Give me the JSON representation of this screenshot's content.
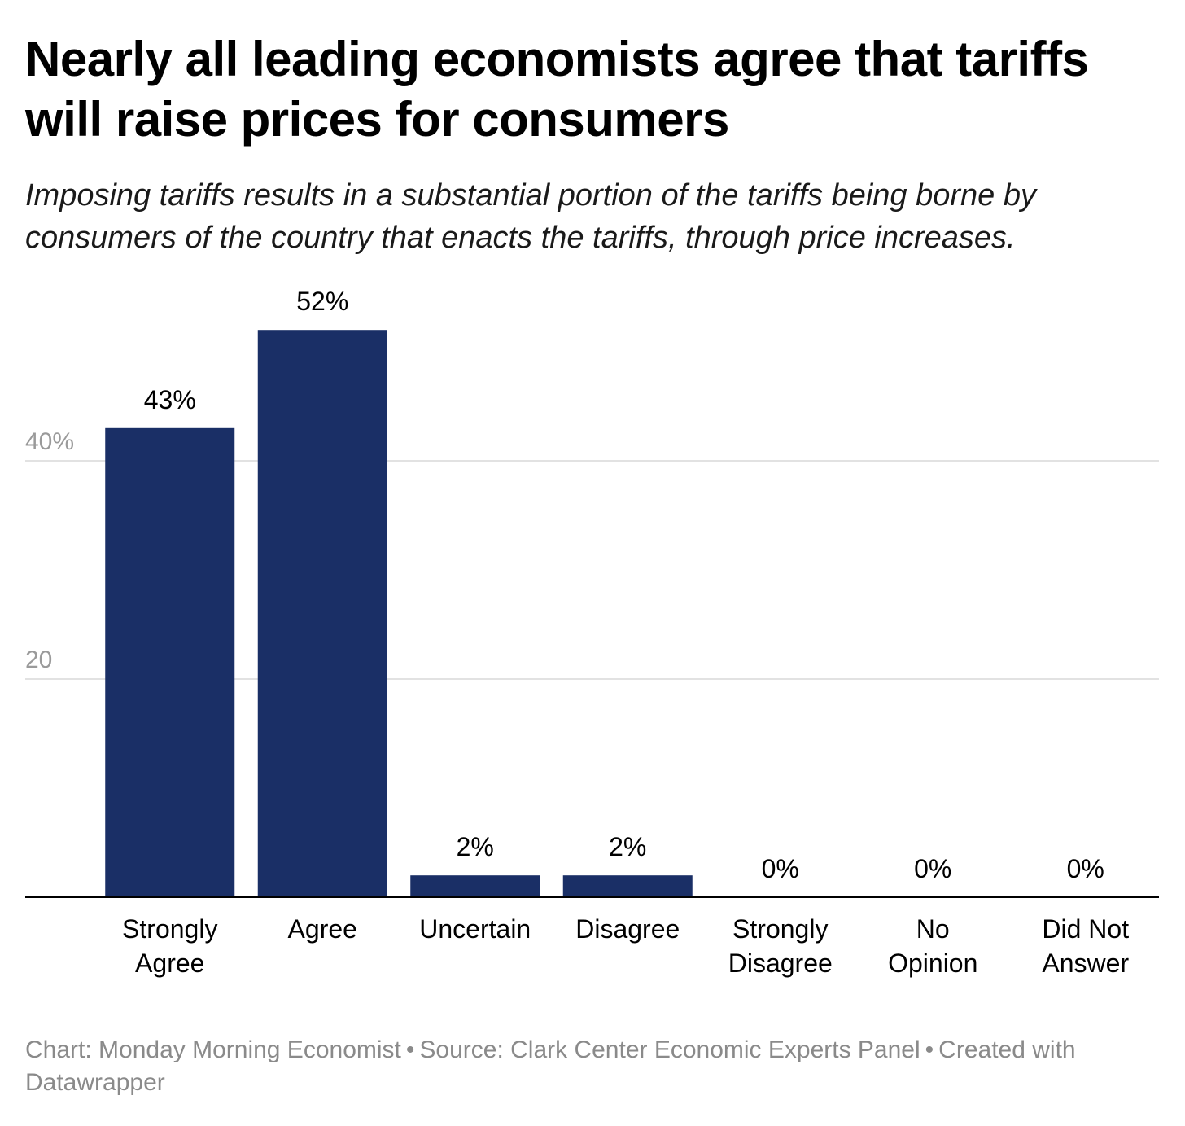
{
  "header": {
    "title": "Nearly all leading economists agree that tariffs will raise prices for consumers",
    "subtitle": "Imposing tariffs results in a substantial portion of the tariffs being borne by consumers of the country that enacts the tariffs, through price increases."
  },
  "footer": {
    "chart_credit": "Chart: Monday Morning Economist",
    "source": "Source: Clark Center Economic Experts Panel",
    "created_with": "Created with Datawrapper"
  },
  "colors": {
    "bar": "#1a2f66",
    "grid": "#e2e2e2",
    "axis": "#000000",
    "tick_label": "#9a9a9a"
  },
  "chart_data": {
    "type": "bar",
    "categories": [
      [
        "Strongly",
        "Agree"
      ],
      [
        "Agree"
      ],
      [
        "Uncertain"
      ],
      [
        "Disagree"
      ],
      [
        "Strongly",
        "Disagree"
      ],
      [
        "No",
        "Opinion"
      ],
      [
        "Did Not",
        "Answer"
      ]
    ],
    "values": [
      43,
      52,
      2,
      2,
      0,
      0,
      0
    ],
    "value_labels": [
      "43%",
      "52%",
      "2%",
      "2%",
      "0%",
      "0%",
      "0%"
    ],
    "yticks": [
      {
        "value": 20,
        "label": "20"
      },
      {
        "value": 40,
        "label": "40%"
      }
    ],
    "ylim": [
      0,
      57
    ],
    "grid": true
  }
}
